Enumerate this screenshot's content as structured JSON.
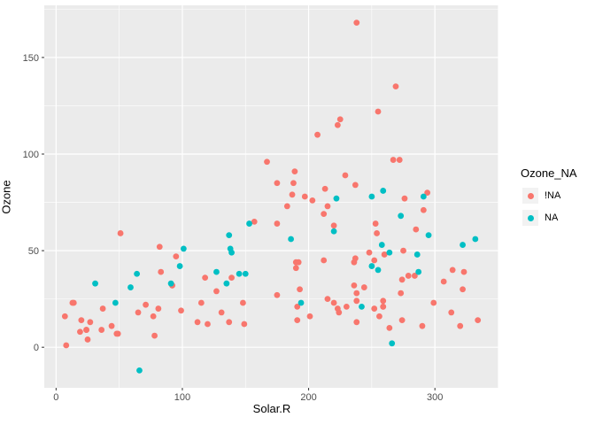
{
  "figure": {
    "background": "#FFFFFF",
    "panel_background": "#EBEBEB",
    "grid_color": "#FFFFFF",
    "tick_label_color": "#4D4D4D",
    "axis_title_color": "#000000"
  },
  "chart_data": {
    "type": "scatter",
    "title": "",
    "xlabel": "Solar.R",
    "ylabel": "Ozone",
    "xlim": [
      -9.35,
      350.35
    ],
    "ylim": [
      -21,
      177
    ],
    "x_ticks": [
      0,
      100,
      200,
      300
    ],
    "y_ticks": [
      0,
      50,
      100,
      150
    ],
    "grid": true,
    "legend": {
      "title": "Ozone_NA",
      "position": "right",
      "entries": [
        {
          "label": "!NA",
          "color": "#F8766D"
        },
        {
          "label": "NA",
          "color": "#00BFC4"
        }
      ]
    },
    "series": [
      {
        "name": "!NA",
        "color": "#F8766D",
        "points": [
          [
            190,
            41
          ],
          [
            118,
            36
          ],
          [
            149,
            12
          ],
          [
            313,
            18
          ],
          [
            299,
            23
          ],
          [
            99,
            19
          ],
          [
            19,
            8
          ],
          [
            256,
            16
          ],
          [
            290,
            11
          ],
          [
            274,
            14
          ],
          [
            65,
            18
          ],
          [
            334,
            14
          ],
          [
            307,
            34
          ],
          [
            78,
            6
          ],
          [
            322,
            30
          ],
          [
            44,
            11
          ],
          [
            8,
            1
          ],
          [
            320,
            11
          ],
          [
            25,
            4
          ],
          [
            92,
            32
          ],
          [
            13,
            23
          ],
          [
            252,
            45
          ],
          [
            223,
            115
          ],
          [
            279,
            37
          ],
          [
            127,
            29
          ],
          [
            291,
            71
          ],
          [
            323,
            39
          ],
          [
            148,
            23
          ],
          [
            191,
            21
          ],
          [
            284,
            37
          ],
          [
            37,
            20
          ],
          [
            120,
            12
          ],
          [
            137,
            13
          ],
          [
            269,
            135
          ],
          [
            248,
            49
          ],
          [
            236,
            32
          ],
          [
            175,
            64
          ],
          [
            314,
            40
          ],
          [
            276,
            77
          ],
          [
            267,
            97
          ],
          [
            272,
            97
          ],
          [
            175,
            85
          ],
          [
            264,
            10
          ],
          [
            175,
            27
          ],
          [
            48,
            7
          ],
          [
            260,
            48
          ],
          [
            274,
            35
          ],
          [
            285,
            61
          ],
          [
            187,
            79
          ],
          [
            220,
            63
          ],
          [
            7,
            16
          ],
          [
            294,
            80
          ],
          [
            81,
            20
          ],
          [
            82,
            52
          ],
          [
            213,
            82
          ],
          [
            275,
            50
          ],
          [
            253,
            64
          ],
          [
            254,
            59
          ],
          [
            83,
            39
          ],
          [
            24,
            9
          ],
          [
            77,
            16
          ],
          [
            255,
            122
          ],
          [
            229,
            89
          ],
          [
            207,
            110
          ],
          [
            192,
            44
          ],
          [
            273,
            28
          ],
          [
            157,
            65
          ],
          [
            71,
            22
          ],
          [
            51,
            59
          ],
          [
            115,
            23
          ],
          [
            244,
            31
          ],
          [
            190,
            44
          ],
          [
            259,
            21
          ],
          [
            36,
            9
          ],
          [
            212,
            45
          ],
          [
            238,
            168
          ],
          [
            215,
            73
          ],
          [
            203,
            76
          ],
          [
            225,
            118
          ],
          [
            237,
            84
          ],
          [
            188,
            85
          ],
          [
            167,
            96
          ],
          [
            197,
            78
          ],
          [
            183,
            73
          ],
          [
            189,
            91
          ],
          [
            95,
            47
          ],
          [
            92,
            32
          ],
          [
            252,
            20
          ],
          [
            220,
            23
          ],
          [
            230,
            21
          ],
          [
            259,
            24
          ],
          [
            236,
            44
          ],
          [
            259,
            21
          ],
          [
            238,
            28
          ],
          [
            24,
            9
          ],
          [
            112,
            13
          ],
          [
            237,
            46
          ],
          [
            224,
            18
          ],
          [
            27,
            13
          ],
          [
            238,
            24
          ],
          [
            201,
            16
          ],
          [
            238,
            13
          ],
          [
            14,
            23
          ],
          [
            139,
            36
          ],
          [
            49,
            7
          ],
          [
            20,
            14
          ],
          [
            193,
            30
          ],
          [
            191,
            14
          ],
          [
            131,
            18
          ],
          [
            223,
            20
          ],
          [
            212,
            69
          ],
          [
            215,
            25
          ]
        ]
      },
      {
        "name": "NA",
        "color": "#00BFC4",
        "points": [
          [
            194,
            23
          ],
          [
            66,
            -12
          ],
          [
            266,
            2
          ],
          [
            286,
            48
          ],
          [
            287,
            39
          ],
          [
            242,
            21
          ],
          [
            186,
            56
          ],
          [
            220,
            60
          ],
          [
            264,
            49
          ],
          [
            273,
            68
          ],
          [
            259,
            81
          ],
          [
            250,
            78
          ],
          [
            250,
            42
          ],
          [
            332,
            56
          ],
          [
            322,
            53
          ],
          [
            150,
            38
          ],
          [
            59,
            31
          ],
          [
            91,
            33
          ],
          [
            135,
            33
          ],
          [
            127,
            39
          ],
          [
            47,
            23
          ],
          [
            98,
            42
          ],
          [
            31,
            33
          ],
          [
            138,
            51
          ],
          [
            101,
            51
          ],
          [
            139,
            49
          ],
          [
            291,
            78
          ],
          [
            258,
            53
          ],
          [
            295,
            58
          ],
          [
            222,
            77
          ],
          [
            137,
            58
          ],
          [
            64,
            38
          ],
          [
            255,
            40
          ],
          [
            153,
            64
          ],
          [
            145,
            38
          ]
        ]
      }
    ]
  }
}
